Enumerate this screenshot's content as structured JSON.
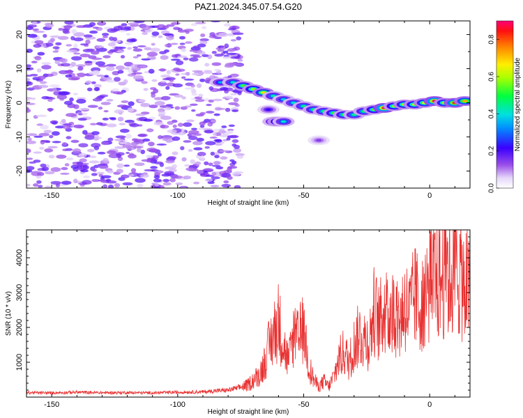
{
  "chart_data": [
    {
      "type": "heatmap",
      "title": "PAZ1.2024.345.07.54.G20",
      "xlabel": "Height of straight line (km)",
      "ylabel": "Frequency (Hz)",
      "xlim": [
        -160,
        16
      ],
      "ylim": [
        -25,
        24
      ],
      "xticks": [
        -150,
        -100,
        -50,
        0
      ],
      "yticks": [
        -20,
        -10,
        0,
        10,
        20
      ],
      "grid": false,
      "colorbar": {
        "label": "Normalized spectral amplitude",
        "range": [
          0,
          0.9
        ],
        "ticks": [
          0.0,
          0.2,
          0.4,
          0.6,
          0.8
        ]
      },
      "noise_region": {
        "x_range": [
          -160,
          -75
        ],
        "y_range": [
          -25,
          24
        ],
        "amplitude": [
          0.05,
          0.2
        ]
      },
      "ridge": [
        {
          "x": -83,
          "y": 6,
          "amp": 0.32
        },
        {
          "x": -78,
          "y": 6,
          "amp": 0.38
        },
        {
          "x": -74,
          "y": 5,
          "amp": 0.5
        },
        {
          "x": -70,
          "y": 4,
          "amp": 0.55
        },
        {
          "x": -66,
          "y": 3,
          "amp": 0.65
        },
        {
          "x": -62,
          "y": 2,
          "amp": 0.4
        },
        {
          "x": -58,
          "y": 1,
          "amp": 0.35
        },
        {
          "x": -54,
          "y": 0,
          "amp": 0.38
        },
        {
          "x": -50,
          "y": -1,
          "amp": 0.42
        },
        {
          "x": -46,
          "y": -2,
          "amp": 0.45
        },
        {
          "x": -42,
          "y": -2.5,
          "amp": 0.44
        },
        {
          "x": -38,
          "y": -3,
          "amp": 0.5
        },
        {
          "x": -34,
          "y": -3.5,
          "amp": 0.48
        },
        {
          "x": -30,
          "y": -3.5,
          "amp": 0.42
        },
        {
          "x": -26,
          "y": -2.5,
          "amp": 0.45
        },
        {
          "x": -22,
          "y": -2,
          "amp": 0.52
        },
        {
          "x": -18,
          "y": -1.5,
          "amp": 0.88
        },
        {
          "x": -14,
          "y": -1,
          "amp": 0.55
        },
        {
          "x": -10,
          "y": -0.5,
          "amp": 0.6
        },
        {
          "x": -6,
          "y": -0.5,
          "amp": 0.58
        },
        {
          "x": -2,
          "y": 0,
          "amp": 0.62
        },
        {
          "x": 2,
          "y": 0.5,
          "amp": 0.85
        },
        {
          "x": 6,
          "y": 0,
          "amp": 0.6
        },
        {
          "x": 10,
          "y": 0,
          "amp": 0.8
        },
        {
          "x": 14,
          "y": 0.5,
          "amp": 0.7
        }
      ],
      "branches": [
        {
          "x": -62,
          "y": -5.5,
          "amp": 0.38
        },
        {
          "x": -60,
          "y": -5.5,
          "amp": 0.55
        },
        {
          "x": -58,
          "y": -5.5,
          "amp": 0.38
        },
        {
          "x": -64,
          "y": -2,
          "amp": 0.2
        },
        {
          "x": -44,
          "y": -11,
          "amp": 0.12
        }
      ]
    },
    {
      "type": "line",
      "title": "",
      "xlabel": "Height of straight line (km)",
      "ylabel": "SNR (10 * v/v)",
      "xlim": [
        -160,
        16
      ],
      "ylim": [
        0,
        4800
      ],
      "xticks": [
        -150,
        -100,
        -50,
        0
      ],
      "yticks": [
        1000,
        2000,
        3000,
        4000
      ],
      "grid": false,
      "series": [
        {
          "color": "#e83030",
          "x": [
            -160,
            -150,
            -140,
            -130,
            -120,
            -110,
            -100,
            -90,
            -85,
            -80,
            -75,
            -72,
            -70,
            -68,
            -66,
            -64,
            -62,
            -60,
            -58,
            -56,
            -54,
            -52,
            -50,
            -48,
            -46,
            -44,
            -42,
            -40,
            -38,
            -36,
            -34,
            -32,
            -30,
            -28,
            -26,
            -24,
            -22,
            -20,
            -18,
            -16,
            -14,
            -12,
            -10,
            -8,
            -6,
            -4,
            -2,
            0,
            2,
            4,
            6,
            8,
            10,
            12,
            14,
            16
          ],
          "y": [
            130,
            120,
            140,
            125,
            130,
            120,
            140,
            150,
            180,
            200,
            280,
            350,
            500,
            600,
            900,
            1400,
            1800,
            2200,
            1500,
            1000,
            1800,
            1600,
            2100,
            900,
            500,
            300,
            450,
            300,
            600,
            1100,
            1300,
            1000,
            1500,
            1800,
            1700,
            1600,
            2500,
            2100,
            2600,
            2300,
            2500,
            2200,
            2700,
            2400,
            2900,
            2600,
            3000,
            3200,
            3400,
            3300,
            3600,
            3400,
            3700,
            3500,
            3300,
            3000
          ]
        }
      ]
    }
  ]
}
